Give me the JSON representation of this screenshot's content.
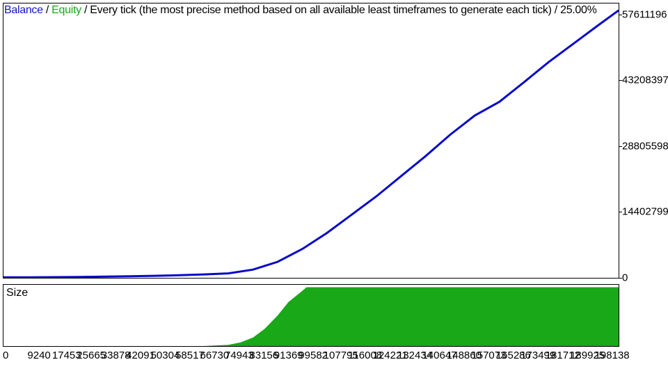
{
  "header": {
    "balance_label": "Balance",
    "balance_color": "#1515c0",
    "equity_label": "Equity",
    "equity_color": "#18a818",
    "separator": " / ",
    "desc_text": "Every tick (the most precise method based on all available least timeframes to generate each tick) / 25.00%",
    "desc_color": "#000000",
    "fontsize": 16
  },
  "main_chart": {
    "type": "line",
    "line_color": "#0808c8",
    "line_width": 3,
    "background": "#ffffff",
    "border_color": "#000000",
    "xlim": [
      0,
      205000
    ],
    "ylim": [
      0,
      60000000
    ],
    "ytick_labels": [
      "0",
      "14402799",
      "28805598",
      "43208397",
      "57611196"
    ],
    "ytick_values": [
      0,
      14402799,
      28805598,
      43208397,
      57611196
    ],
    "x_values": [
      0,
      9240,
      17453,
      25665,
      33878,
      42091,
      50304,
      58517,
      66730,
      74943,
      83156,
      91369,
      99582,
      107795,
      116008,
      124221,
      132434,
      140647,
      148860,
      157073,
      165286,
      173499,
      181712,
      189925,
      198138,
      205000
    ],
    "y_values": [
      100000,
      120000,
      150000,
      200000,
      260000,
      340000,
      440000,
      570000,
      750000,
      980000,
      1800000,
      3500000,
      6300000,
      9800000,
      13800000,
      17800000,
      22200000,
      26600000,
      31300000,
      35500000,
      38500000,
      42800000,
      47200000,
      51200000,
      55200000,
      58500000
    ]
  },
  "size_chart": {
    "type": "area",
    "fill_color": "#18a818",
    "background": "#ffffff",
    "border_color": "#000000",
    "xlim": [
      0,
      205000
    ],
    "ylim": [
      0,
      100
    ],
    "label": "Size",
    "x_values": [
      0,
      66730,
      74943,
      79000,
      83156,
      87000,
      91369,
      95000,
      99582,
      101000,
      205000
    ],
    "y_values": [
      0,
      0,
      2,
      6,
      14,
      28,
      50,
      72,
      90,
      96,
      96
    ]
  },
  "x_axis": {
    "labels": [
      "0",
      "9240",
      "17453",
      "25665",
      "33878",
      "42091",
      "50304",
      "58517",
      "66730",
      "74943",
      "83156",
      "91369",
      "99582",
      "107795",
      "116008",
      "124221",
      "132434",
      "140647",
      "148860",
      "157073",
      "165286",
      "173499",
      "181712",
      "189925",
      "198138"
    ],
    "fontsize": 15,
    "color": "#000000"
  }
}
